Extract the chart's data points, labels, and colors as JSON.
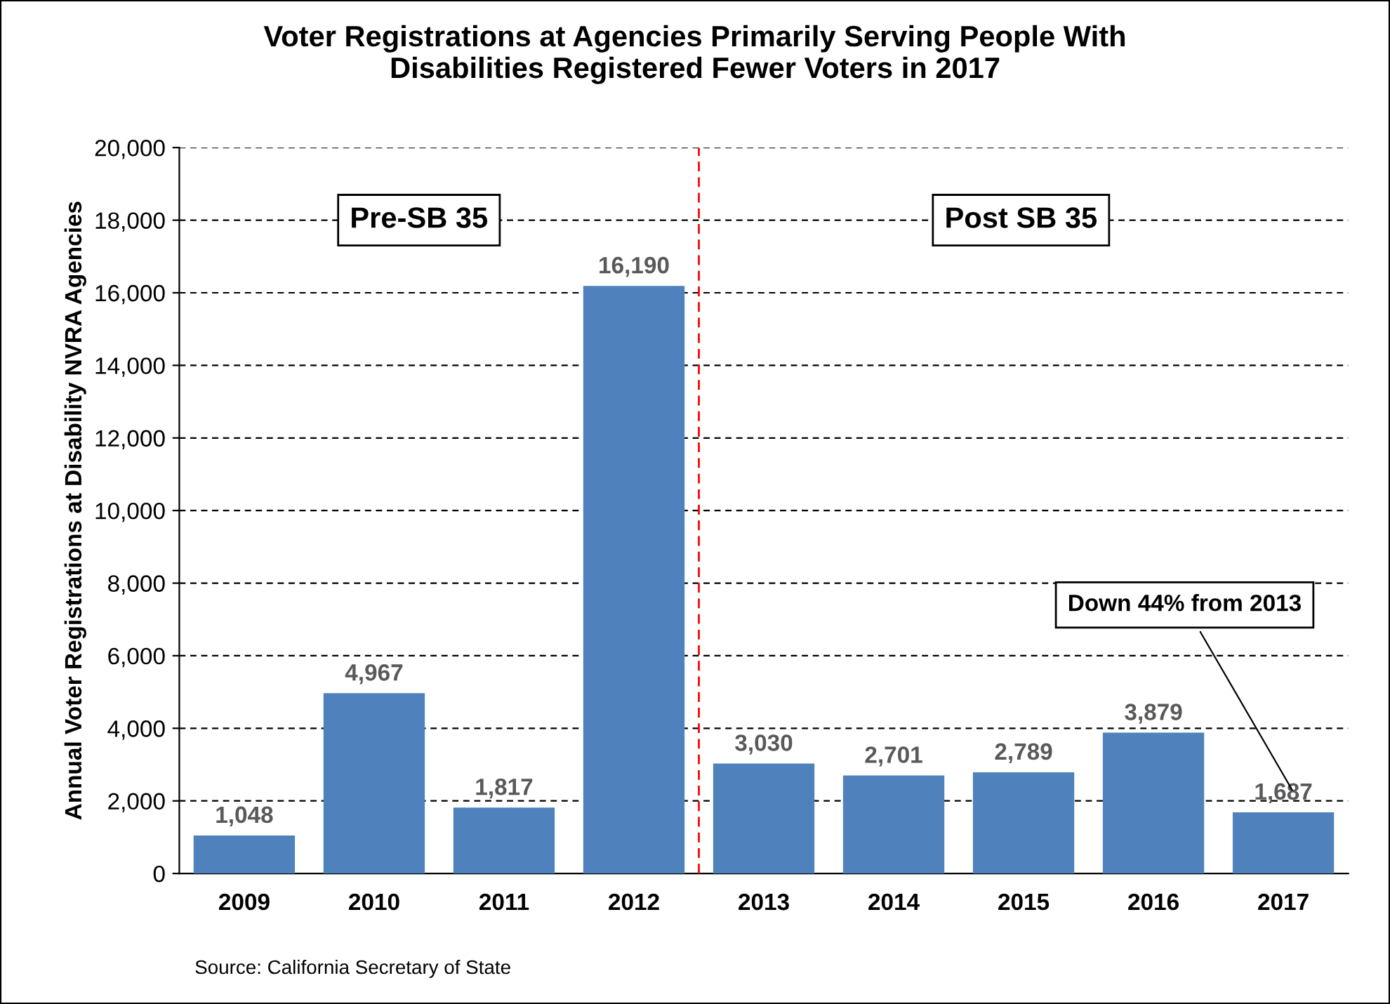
{
  "chart_data": {
    "type": "bar",
    "title": "Voter Registrations at Agencies Primarily Serving People With\nDisabilities Registered Fewer Voters in 2017",
    "ylabel": "Annual Voter Registrations at Disability NVRA Agencies",
    "categories": [
      "2009",
      "2010",
      "2011",
      "2012",
      "2013",
      "2014",
      "2015",
      "2016",
      "2017"
    ],
    "values": [
      1048,
      4967,
      1817,
      16190,
      3030,
      2701,
      2789,
      3879,
      1687
    ],
    "color": "#4f81bd",
    "ylim": [
      0,
      20000
    ],
    "yticks": [
      0,
      {
        "value": 2000,
        "label": "2,000"
      },
      {
        "value": 4000,
        "label": "4,000"
      },
      {
        "value": 6000,
        "label": "6,000"
      },
      {
        "value": 8000,
        "label": "8,000"
      },
      {
        "value": 10000,
        "label": "10,000"
      },
      {
        "value": 12000,
        "label": "12,000"
      },
      {
        "value": 14000,
        "label": "14,000"
      },
      {
        "value": 16000,
        "label": "16,000"
      },
      {
        "value": 18000,
        "label": "18,000"
      },
      {
        "value": 20000,
        "label": "20,000"
      }
    ],
    "value_labels": [
      "1,048",
      "4,967",
      "1,817",
      "16,190",
      "3,030",
      "2,701",
      "2,789",
      "3,879",
      "1,687"
    ],
    "grid": "y",
    "ref_lines": [
      {
        "axis": "x",
        "value": "2013",
        "color": "#ff0000",
        "line_style": "dashed"
      }
    ],
    "annotations": [
      "Pre-SB 35",
      "Post SB 35",
      "Down 44% from 2013",
      "Source: California Secretary of State"
    ]
  }
}
